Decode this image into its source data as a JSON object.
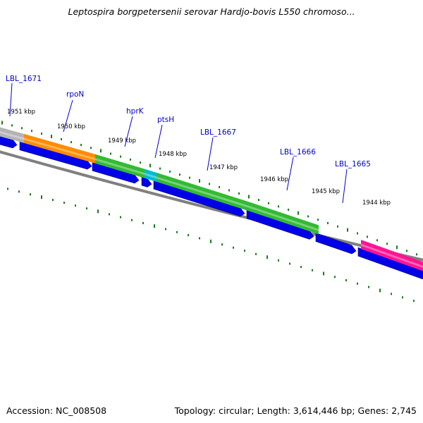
{
  "title": "Leptospira borgpetersenii serovar Hardjo-bovis L550 chromoso...",
  "footer": {
    "accession": "Accession: NC_008508",
    "summary": "Topology: circular; Length: 3,614,446 bp; Genes: 2,745"
  },
  "colors": {
    "forward_cds": "#0000e8",
    "backbone": "#808080",
    "label_line": "#0000cc",
    "tick": "#1a7a1a",
    "feature_grey": "#b4b4b4",
    "feature_orange": "#ff8c00",
    "feature_green": "#33bb33",
    "feature_cyan": "#00bcd0",
    "feature_magenta": "#ff1493"
  },
  "kbp_labels": [
    "1951 kbp",
    "1950 kbp",
    "1949 kbp",
    "1948 kbp",
    "1947 kbp",
    "1946 kbp",
    "1945 kbp",
    "1944 kbp"
  ],
  "genes": [
    {
      "name": "LBL_1671",
      "color_key": "feature_grey"
    },
    {
      "name": "rpoN",
      "color_key": "feature_orange"
    },
    {
      "name": "hprK",
      "color_key": "feature_green"
    },
    {
      "name": "ptsH",
      "color_key": "feature_cyan"
    },
    {
      "name": "LBL_1667",
      "color_key": "feature_green"
    },
    {
      "name": "LBL_1666",
      "color_key": "feature_green"
    },
    {
      "name": "LBL_1665",
      "color_key": "feature_magenta"
    }
  ]
}
